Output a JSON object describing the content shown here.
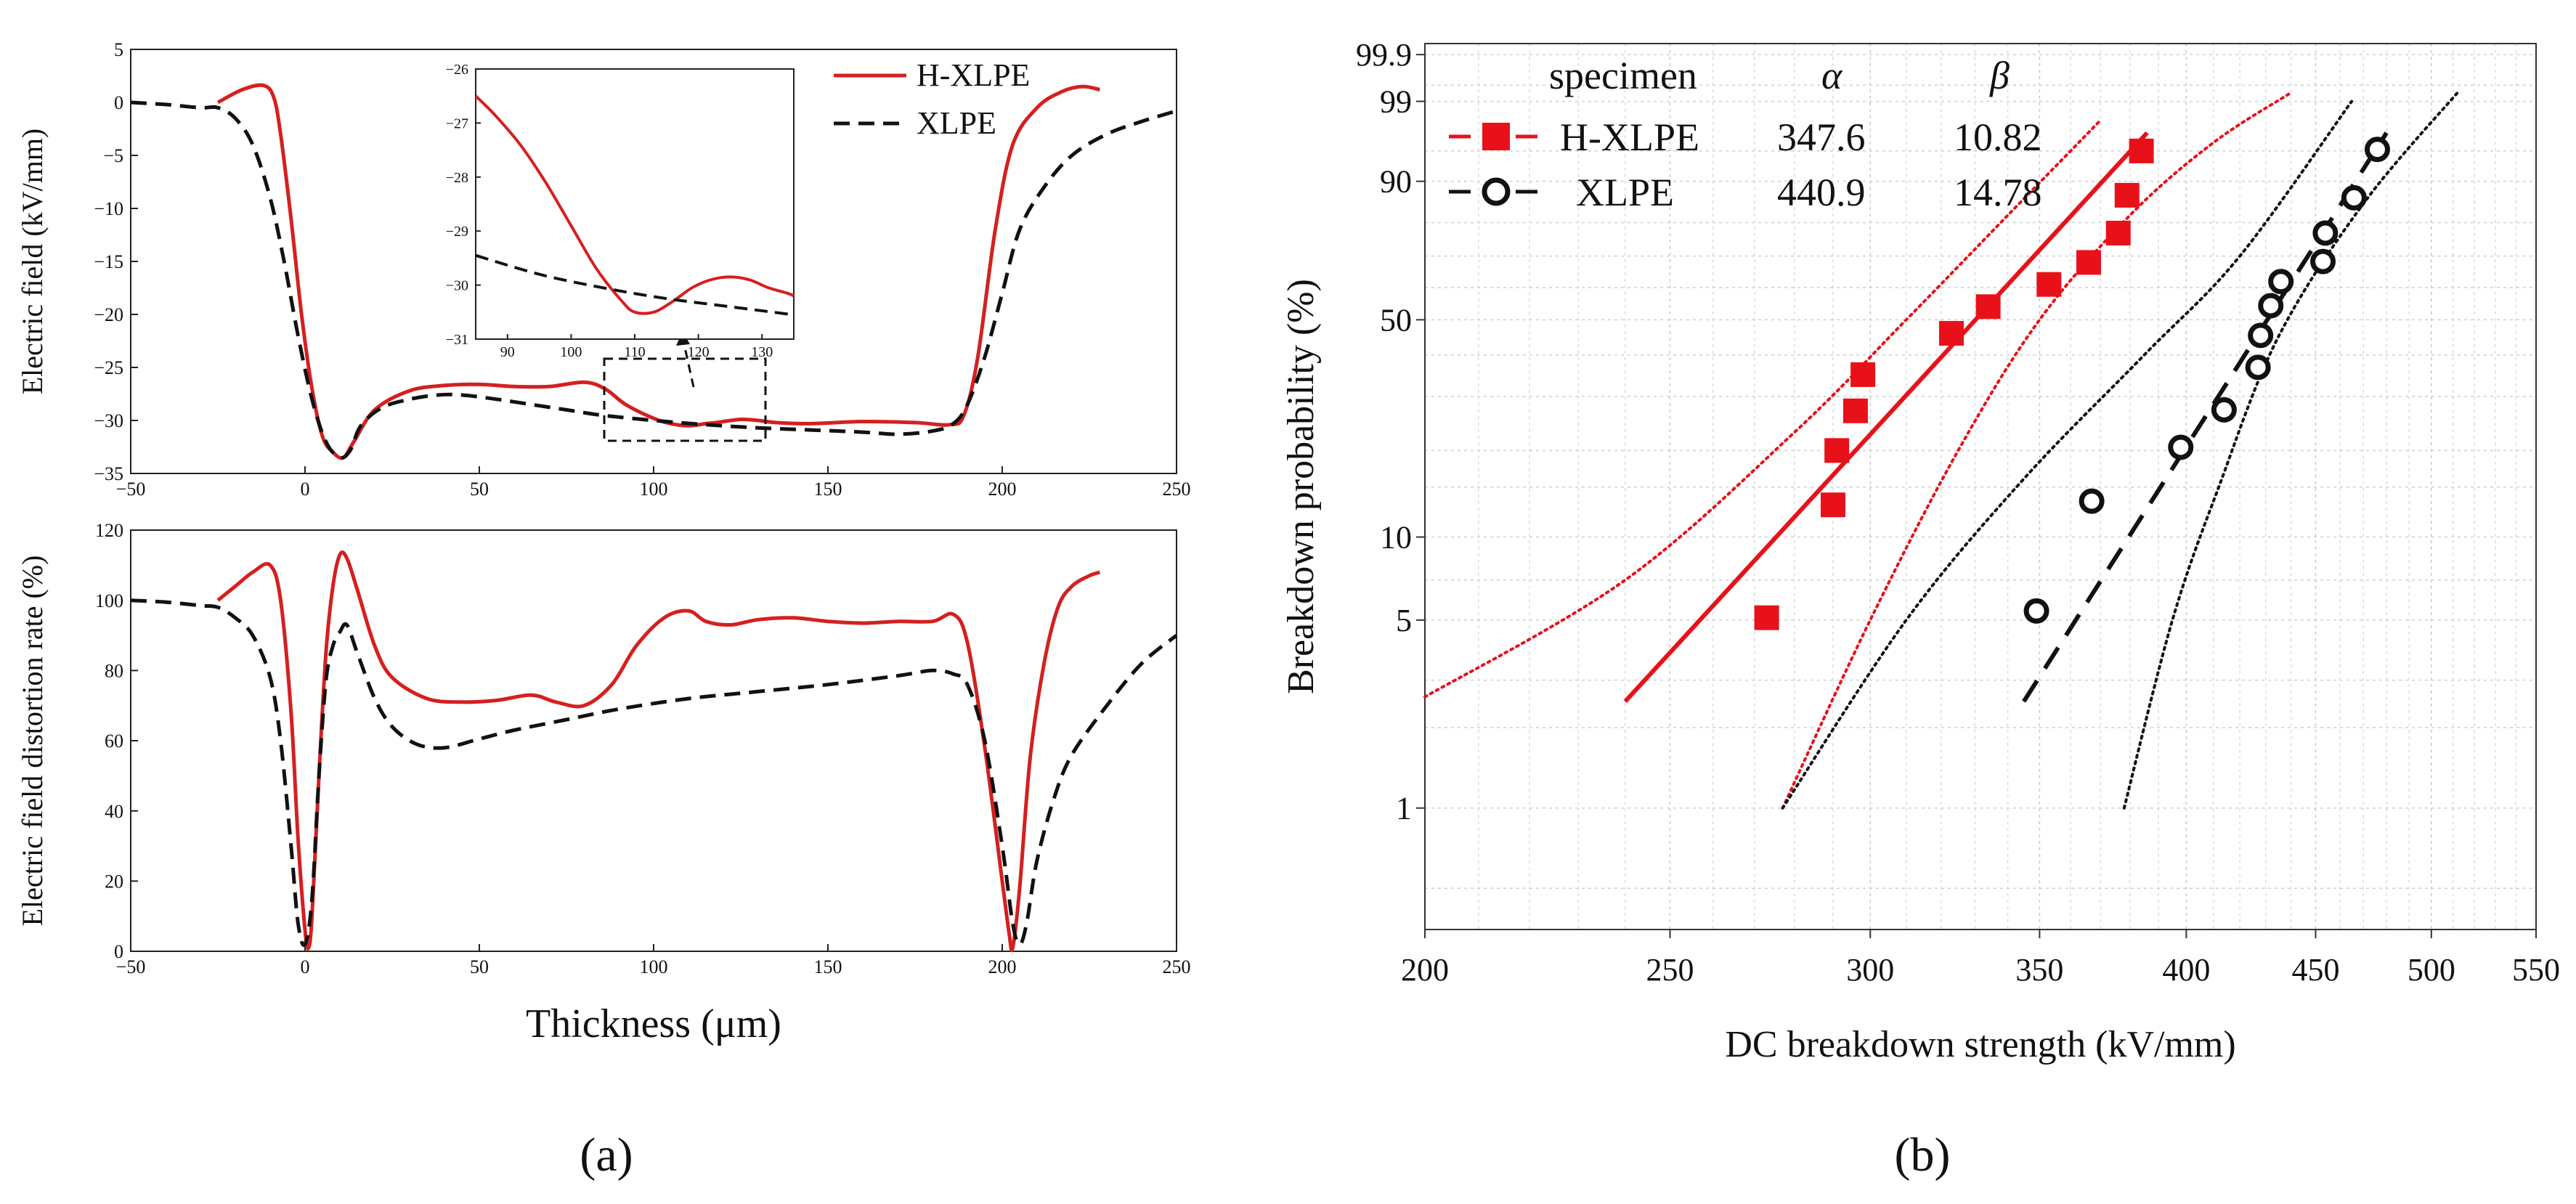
{
  "chart_data": [
    {
      "type": "line",
      "panel": "a-top",
      "xlabel": "",
      "ylabel": "Electric field (kV/mm)",
      "xlim": [
        -50,
        250
      ],
      "ylim": [
        -35,
        5
      ],
      "xticks": [
        "−50",
        "0",
        "50",
        "100",
        "150",
        "200",
        "250"
      ],
      "yticks": [
        "5",
        "0",
        "−5",
        "−10",
        "−15",
        "−20",
        "−25",
        "−30",
        "−35"
      ],
      "legend": [
        "H-XLPE",
        "XLPE"
      ],
      "series": [
        {
          "name": "H-XLPE",
          "color": "#d42020",
          "style": "solid",
          "x": [
            -25,
            -18,
            -12,
            -9,
            -7,
            -4,
            -1,
            2,
            5,
            8,
            11,
            14,
            20,
            30,
            40,
            50,
            60,
            70,
            80,
            86,
            92,
            100,
            105,
            110,
            115,
            118,
            125,
            130,
            135,
            145,
            160,
            175,
            185,
            189,
            193,
            198,
            203,
            210,
            217,
            223,
            228
          ],
          "y": [
            0,
            1.2,
            1.6,
            0.5,
            -3,
            -11,
            -20,
            -27,
            -31.5,
            -33,
            -33.5,
            -32,
            -29,
            -27.2,
            -26.7,
            -26.6,
            -26.8,
            -26.8,
            -26.4,
            -27,
            -28.5,
            -29.8,
            -30.3,
            -30.5,
            -30.3,
            -30.2,
            -29.9,
            -30,
            -30.2,
            -30.3,
            -30.1,
            -30.2,
            -30.4,
            -29.5,
            -24,
            -12,
            -4,
            -0.5,
            1,
            1.5,
            1.2
          ]
        },
        {
          "name": "XLPE",
          "color": "#111111",
          "style": "dashed",
          "x": [
            -50,
            -40,
            -30,
            -25,
            -20,
            -15,
            -10,
            -6,
            -2,
            2,
            6,
            10,
            13,
            16,
            22,
            30,
            38,
            45,
            55,
            65,
            75,
            85,
            100,
            115,
            130,
            145,
            160,
            170,
            180,
            186,
            190,
            195,
            200,
            205,
            212,
            220,
            230,
            240,
            250
          ],
          "y": [
            0,
            -0.2,
            -0.5,
            -0.5,
            -1.5,
            -4,
            -9,
            -15,
            -22,
            -28,
            -32,
            -33.5,
            -32.8,
            -30.5,
            -28.8,
            -28,
            -27.6,
            -27.6,
            -28,
            -28.5,
            -29,
            -29.5,
            -30,
            -30.4,
            -30.7,
            -30.9,
            -31.1,
            -31.3,
            -31,
            -30.3,
            -28.5,
            -24,
            -18,
            -12,
            -8,
            -5,
            -3,
            -1.8,
            -0.8
          ]
        }
      ]
    },
    {
      "type": "line",
      "panel": "a-inset",
      "xlim": [
        85,
        135
      ],
      "ylim": [
        -31,
        -26
      ],
      "xticks": [
        "90",
        "100",
        "110",
        "120",
        "130"
      ],
      "yticks": [
        "−26",
        "−27",
        "−28",
        "−29",
        "−30",
        "−31"
      ],
      "series": [
        {
          "name": "H-XLPE",
          "color": "#d42020",
          "style": "solid",
          "x": [
            85,
            88,
            92,
            96,
            100,
            104,
            108,
            110,
            113,
            116,
            119,
            122,
            125,
            128,
            131,
            134,
            135
          ],
          "y": [
            -26.5,
            -26.85,
            -27.4,
            -28.1,
            -28.9,
            -29.7,
            -30.3,
            -30.5,
            -30.5,
            -30.3,
            -30.05,
            -29.9,
            -29.85,
            -29.9,
            -30.05,
            -30.15,
            -30.2
          ]
        },
        {
          "name": "XLPE",
          "color": "#111111",
          "style": "dashed",
          "x": [
            85,
            95,
            105,
            115,
            125,
            135
          ],
          "y": [
            -29.45,
            -29.8,
            -30.05,
            -30.25,
            -30.4,
            -30.55
          ]
        }
      ]
    },
    {
      "type": "line",
      "panel": "a-bottom",
      "xlabel": "Thickness (μm)",
      "ylabel": "Electric field distortion rate (%)",
      "xlim": [
        -50,
        250
      ],
      "ylim": [
        0,
        120
      ],
      "xticks": [
        "−50",
        "0",
        "50",
        "100",
        "150",
        "200",
        "250"
      ],
      "yticks": [
        "0",
        "20",
        "40",
        "60",
        "80",
        "100",
        "120"
      ],
      "series": [
        {
          "name": "H-XLPE",
          "color": "#d42020",
          "style": "solid",
          "x": [
            -25,
            -20,
            -15,
            -10,
            -7,
            -4,
            -2,
            0,
            1,
            2,
            4,
            6,
            8,
            10,
            12,
            15,
            20,
            25,
            35,
            45,
            55,
            65,
            72,
            80,
            88,
            95,
            103,
            110,
            115,
            122,
            130,
            140,
            150,
            160,
            170,
            180,
            186,
            190,
            195,
            200,
            202,
            203,
            205,
            208,
            212,
            216,
            220,
            225,
            228
          ],
          "y": [
            100,
            104,
            108,
            110,
            100,
            68,
            32,
            6,
            1,
            10,
            50,
            85,
            104,
            113,
            112,
            103,
            87,
            78,
            72,
            71,
            71.5,
            73,
            71,
            70,
            76,
            87,
            95,
            97,
            94,
            93,
            94.5,
            95,
            94,
            93.5,
            94,
            94,
            96,
            88,
            58,
            20,
            5,
            1,
            18,
            55,
            82,
            98,
            104,
            107,
            108
          ]
        },
        {
          "name": "XLPE",
          "color": "#111111",
          "style": "dashed",
          "x": [
            -50,
            -40,
            -30,
            -25,
            -20,
            -15,
            -10,
            -7,
            -4,
            -2,
            0,
            2,
            4,
            6,
            8,
            10,
            12,
            15,
            20,
            25,
            32,
            40,
            50,
            60,
            75,
            90,
            110,
            130,
            150,
            170,
            180,
            186,
            190,
            195,
            200,
            203,
            205,
            207,
            210,
            215,
            220,
            230,
            240,
            250
          ],
          "y": [
            100,
            99.5,
            98.5,
            98,
            95,
            90,
            78,
            60,
            30,
            8,
            2,
            15,
            50,
            77,
            87,
            91,
            93,
            85,
            72,
            64,
            59,
            58,
            60.5,
            63,
            66,
            69,
            72,
            74,
            76,
            78.5,
            80,
            79,
            76,
            60,
            30,
            8,
            2,
            8,
            26,
            44,
            56,
            70,
            82,
            90
          ]
        }
      ]
    },
    {
      "type": "scatter",
      "panel": "b",
      "xlabel": "DC breakdown strength (kV/mm)",
      "ylabel": "Breakdown probability (%)",
      "xscale": "log",
      "yscale": "weibull",
      "xlim": [
        200,
        550
      ],
      "ylim": [
        0.35,
        99.95
      ],
      "xticks": [
        "200",
        "250",
        "300",
        "350",
        "400",
        "450",
        "500",
        "550"
      ],
      "yticks": [
        "99.9",
        "99",
        "90",
        "50",
        "10",
        "5",
        "1"
      ],
      "legend": {
        "header": [
          "specimen",
          "α",
          "β"
        ],
        "rows": [
          [
            "H-XLPE",
            "347.6",
            "10.82"
          ],
          [
            "XLPE",
            "440.9",
            "14.78"
          ]
        ]
      },
      "series": [
        {
          "name": "H-XLPE",
          "alpha": 347.6,
          "beta": 10.82,
          "color": "#e8111a",
          "marker": "square",
          "x": [
            273,
            290,
            291,
            296,
            298,
            323,
            334,
            353,
            366,
            376,
            379,
            384
          ],
          "y": [
            5.1,
            13,
            20,
            27,
            35,
            46,
            54,
            61,
            68,
            77,
            87,
            95
          ],
          "fit": [
            [
              240,
              2.5
            ],
            [
              386,
              97
            ]
          ],
          "ci_upper": [
            [
              200,
              2.6
            ],
            [
              240,
              7
            ],
            [
              280,
              23
            ],
            [
              310,
              50
            ],
            [
              340,
              82
            ],
            [
              370,
              98
            ]
          ],
          "ci_lower": [
            [
              277,
              1
            ],
            [
              300,
              5
            ],
            [
              325,
              20
            ],
            [
              350,
              50
            ],
            [
              380,
              82
            ],
            [
              410,
              96
            ],
            [
              440,
              99.3
            ]
          ]
        },
        {
          "name": "XLPE",
          "alpha": 440.9,
          "beta": 14.78,
          "color": "#111111",
          "marker": "circle",
          "x": [
            349,
            367,
            398,
            414,
            427,
            428,
            432,
            436,
            453,
            454,
            466,
            476
          ],
          "y": [
            5.4,
            13.4,
            20.5,
            27.2,
            36.8,
            45.4,
            54.3,
            61.9,
            68.3,
            77,
            86.4,
            95.2
          ],
          "fit": [
            [
              345,
              2.5
            ],
            [
              480,
              97
            ]
          ],
          "ci_upper": [
            [
              277,
              1
            ],
            [
              310,
              5
            ],
            [
              345,
              16
            ],
            [
              385,
              40
            ],
            [
              420,
              70
            ],
            [
              465,
              99
            ]
          ],
          "ci_lower": [
            [
              378,
              1
            ],
            [
              395,
              5
            ],
            [
              412,
              15
            ],
            [
              435,
              45
            ],
            [
              470,
              85
            ],
            [
              512,
              99.3
            ]
          ]
        }
      ]
    }
  ],
  "labels": {
    "a": "(a)",
    "b": "(b)"
  }
}
